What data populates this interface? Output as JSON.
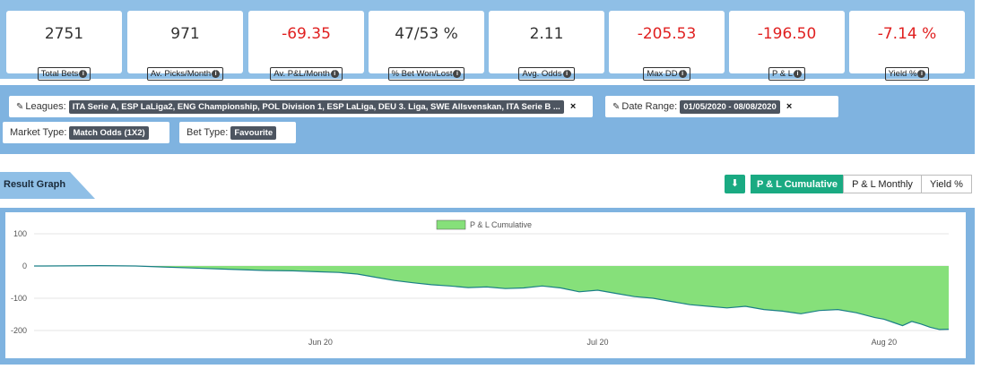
{
  "stats": [
    {
      "value": "2751",
      "label": "Total Bets",
      "negative": false
    },
    {
      "value": "971",
      "label": "Av. Picks/Month",
      "negative": false
    },
    {
      "value": "-69.35",
      "label": "Av. P&L/Month",
      "negative": true
    },
    {
      "value": "47/53 %",
      "label": "% Bet Won/Lost",
      "negative": false
    },
    {
      "value": "2.11",
      "label": "Avg. Odds",
      "negative": false
    },
    {
      "value": "-205.53",
      "label": "Max DD",
      "negative": true
    },
    {
      "value": "-196.50",
      "label": "P & L",
      "negative": true
    },
    {
      "value": "-7.14 %",
      "label": "Yield %",
      "negative": true
    }
  ],
  "filters": {
    "leagues_label": "Leagues:",
    "leagues_value": "ITA Serie A, ESP LaLiga2, ENG Championship, POL Division 1, ESP LaLiga, DEU 3. Liga, SWE Allsvenskan, ITA Serie B ...",
    "date_label": "Date Range:",
    "date_value": "01/05/2020 - 08/08/2020",
    "market_label": "Market Type:",
    "market_value": "Match Odds (1X2)",
    "bet_label": "Bet Type:",
    "bet_value": "Favourite",
    "close_symbol": "×",
    "pencil_symbol": "✎"
  },
  "result": {
    "title": "Result Graph",
    "download_symbol": "⬇",
    "tabs": [
      "P & L Cumulative",
      "P & L Monthly",
      "Yield %"
    ],
    "active_tab": 0
  },
  "chart_data": {
    "type": "area",
    "legend": "P & L Cumulative",
    "fill_color": "#86e07a",
    "line_color": "#1a7f86",
    "y_ticks": [
      100,
      0,
      -100,
      -200
    ],
    "ylim": [
      -200,
      100
    ],
    "x_ticks": [
      "Jun 20",
      "Jul 20",
      "Aug 20"
    ],
    "x_tick_dates": [
      "2020-06-01",
      "2020-07-01",
      "2020-08-01"
    ],
    "xlim": [
      "2020-05-01",
      "2020-08-08"
    ],
    "points": [
      [
        "2020-05-01",
        0
      ],
      [
        "2020-05-02",
        0
      ],
      [
        "2020-05-08",
        1
      ],
      [
        "2020-05-12",
        0
      ],
      [
        "2020-05-15",
        -3
      ],
      [
        "2020-05-18",
        -6
      ],
      [
        "2020-05-22",
        -10
      ],
      [
        "2020-05-26",
        -14
      ],
      [
        "2020-05-29",
        -15
      ],
      [
        "2020-06-01",
        -18
      ],
      [
        "2020-06-03",
        -20
      ],
      [
        "2020-06-05",
        -25
      ],
      [
        "2020-06-07",
        -35
      ],
      [
        "2020-06-09",
        -45
      ],
      [
        "2020-06-11",
        -52
      ],
      [
        "2020-06-13",
        -58
      ],
      [
        "2020-06-15",
        -62
      ],
      [
        "2020-06-17",
        -67
      ],
      [
        "2020-06-19",
        -65
      ],
      [
        "2020-06-21",
        -70
      ],
      [
        "2020-06-23",
        -68
      ],
      [
        "2020-06-25",
        -62
      ],
      [
        "2020-06-27",
        -68
      ],
      [
        "2020-06-29",
        -80
      ],
      [
        "2020-07-01",
        -75
      ],
      [
        "2020-07-03",
        -85
      ],
      [
        "2020-07-05",
        -95
      ],
      [
        "2020-07-07",
        -100
      ],
      [
        "2020-07-09",
        -110
      ],
      [
        "2020-07-11",
        -120
      ],
      [
        "2020-07-13",
        -125
      ],
      [
        "2020-07-15",
        -130
      ],
      [
        "2020-07-17",
        -125
      ],
      [
        "2020-07-19",
        -135
      ],
      [
        "2020-07-21",
        -140
      ],
      [
        "2020-07-23",
        -148
      ],
      [
        "2020-07-25",
        -138
      ],
      [
        "2020-07-27",
        -135
      ],
      [
        "2020-07-29",
        -145
      ],
      [
        "2020-07-31",
        -160
      ],
      [
        "2020-08-01",
        -165
      ],
      [
        "2020-08-02",
        -175
      ],
      [
        "2020-08-03",
        -185
      ],
      [
        "2020-08-04",
        -172
      ],
      [
        "2020-08-05",
        -180
      ],
      [
        "2020-08-06",
        -190
      ],
      [
        "2020-08-07",
        -197
      ],
      [
        "2020-08-08",
        -196
      ]
    ]
  }
}
